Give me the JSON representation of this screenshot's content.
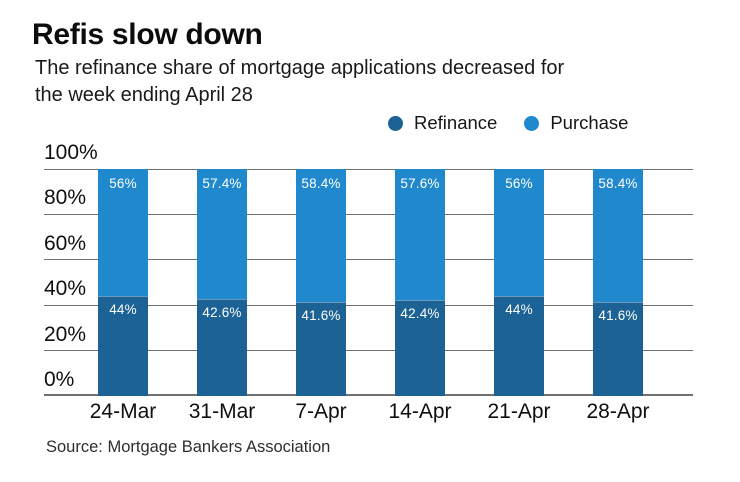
{
  "header": {
    "title": "Refis slow down",
    "subtitle_lines": [
      "The refinance share of mortgage applications decreased for",
      "the week ending April 28"
    ]
  },
  "source": "Source: Mortgage Bankers Association",
  "chart_data": {
    "type": "bar",
    "stacked": true,
    "title": "Refis slow down",
    "subtitle": "The refinance share of mortgage applications decreased for the week ending April 28",
    "categories": [
      "24-Mar",
      "31-Mar",
      "7-Apr",
      "14-Apr",
      "21-Apr",
      "28-Apr"
    ],
    "series": [
      {
        "name": "Refinance",
        "color": "#1c6294",
        "values": [
          44,
          42.6,
          41.6,
          42.4,
          44,
          41.6
        ],
        "labels": [
          "44%",
          "42.6%",
          "41.6%",
          "42.4%",
          "44%",
          "41.6%"
        ]
      },
      {
        "name": "Purchase",
        "color": "#2089ce",
        "values": [
          56,
          57.4,
          58.4,
          57.6,
          56,
          58.4
        ],
        "labels": [
          "56%",
          "57.4%",
          "58.4%",
          "57.6%",
          "56%",
          "58.4%"
        ]
      }
    ],
    "yticks": [
      {
        "value": 0,
        "label": "0%"
      },
      {
        "value": 20,
        "label": "20%"
      },
      {
        "value": 40,
        "label": "40%"
      },
      {
        "value": 60,
        "label": "60%"
      },
      {
        "value": 80,
        "label": "80%"
      },
      {
        "value": 100,
        "label": "100%"
      }
    ],
    "ylim": [
      0,
      100
    ],
    "grid": true,
    "grid_color": "#707070",
    "value_label_color": "#ffffff",
    "legend_position": "top-right"
  }
}
